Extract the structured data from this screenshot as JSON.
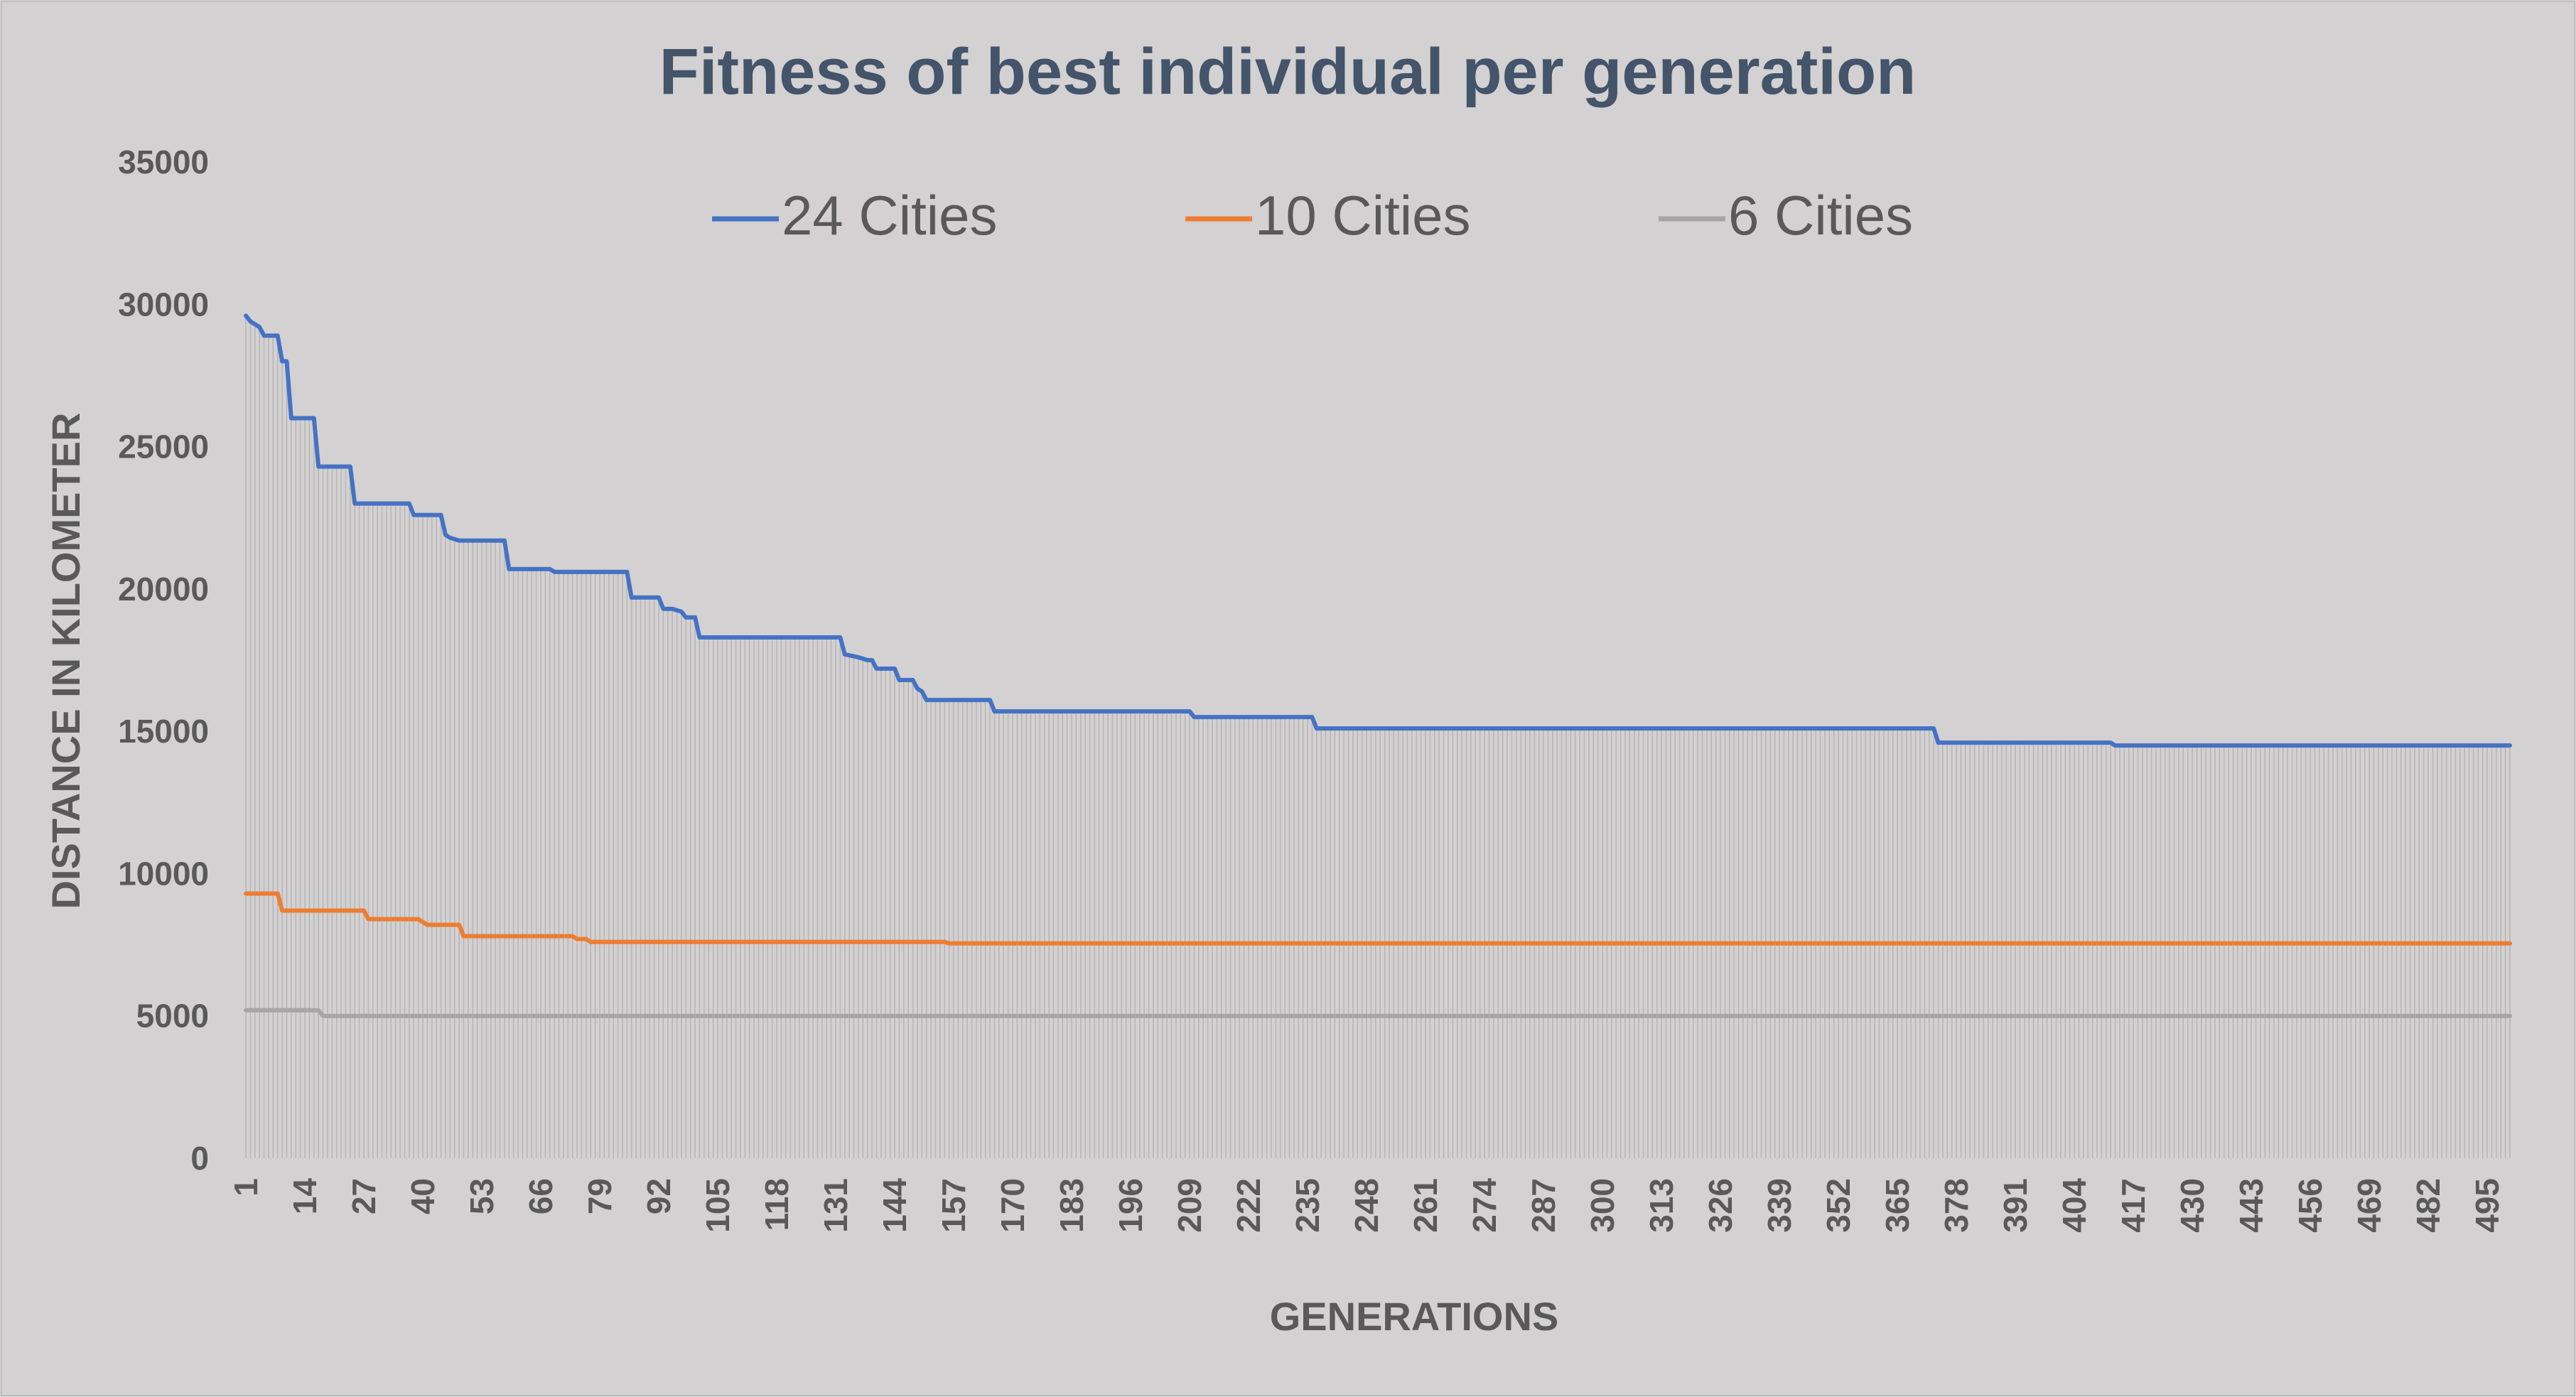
{
  "chart_data": {
    "type": "line",
    "title": "Fitness of best individual per generation",
    "xlabel": "GENERATIONS",
    "ylabel": "DISTANCE IN KILOMETER",
    "ylim": [
      0,
      35000
    ],
    "yticks": [
      0,
      5000,
      10000,
      15000,
      20000,
      25000,
      30000,
      35000
    ],
    "xlim": [
      1,
      500
    ],
    "xtick_labels": [
      "1",
      "14",
      "27",
      "40",
      "53",
      "66",
      "79",
      "92",
      "105",
      "118",
      "131",
      "144",
      "157",
      "170",
      "183",
      "196",
      "209",
      "222",
      "235",
      "248",
      "261",
      "274",
      "287",
      "300",
      "313",
      "326",
      "339",
      "352",
      "365",
      "378",
      "391",
      "404",
      "417",
      "430",
      "443",
      "456",
      "469",
      "482",
      "495"
    ],
    "grid": "vertical hairlines at each generation",
    "legend_position": "top",
    "series": [
      {
        "name": "24 Cities",
        "color": "#4472c4",
        "steps": [
          [
            1,
            29600
          ],
          [
            2,
            29400
          ],
          [
            3,
            29300
          ],
          [
            4,
            29200
          ],
          [
            5,
            28900
          ],
          [
            8,
            28900
          ],
          [
            9,
            28000
          ],
          [
            10,
            28000
          ],
          [
            11,
            26000
          ],
          [
            16,
            26000
          ],
          [
            17,
            24300
          ],
          [
            24,
            24300
          ],
          [
            25,
            23000
          ],
          [
            37,
            23000
          ],
          [
            38,
            22600
          ],
          [
            44,
            22600
          ],
          [
            45,
            21900
          ],
          [
            46,
            21800
          ],
          [
            48,
            21700
          ],
          [
            58,
            21700
          ],
          [
            59,
            20700
          ],
          [
            68,
            20700
          ],
          [
            69,
            20600
          ],
          [
            85,
            20600
          ],
          [
            86,
            19700
          ],
          [
            92,
            19700
          ],
          [
            93,
            19300
          ],
          [
            95,
            19300
          ],
          [
            97,
            19200
          ],
          [
            98,
            19000
          ],
          [
            100,
            19000
          ],
          [
            101,
            18300
          ],
          [
            132,
            18300
          ],
          [
            133,
            17700
          ],
          [
            136,
            17600
          ],
          [
            138,
            17500
          ],
          [
            139,
            17500
          ],
          [
            140,
            17200
          ],
          [
            144,
            17200
          ],
          [
            145,
            16800
          ],
          [
            148,
            16800
          ],
          [
            149,
            16500
          ],
          [
            150,
            16400
          ],
          [
            151,
            16100
          ],
          [
            165,
            16100
          ],
          [
            166,
            15700
          ],
          [
            209,
            15700
          ],
          [
            210,
            15500
          ],
          [
            236,
            15500
          ],
          [
            237,
            15100
          ],
          [
            373,
            15100
          ],
          [
            374,
            14600
          ],
          [
            412,
            14600
          ],
          [
            413,
            14500
          ],
          [
            500,
            14500
          ]
        ]
      },
      {
        "name": "10 Cities",
        "color": "#ed7d31",
        "steps": [
          [
            1,
            9300
          ],
          [
            8,
            9300
          ],
          [
            9,
            8700
          ],
          [
            27,
            8700
          ],
          [
            28,
            8400
          ],
          [
            39,
            8400
          ],
          [
            40,
            8300
          ],
          [
            41,
            8200
          ],
          [
            48,
            8200
          ],
          [
            49,
            7800
          ],
          [
            73,
            7800
          ],
          [
            74,
            7700
          ],
          [
            76,
            7700
          ],
          [
            77,
            7600
          ],
          [
            155,
            7600
          ],
          [
            156,
            7550
          ],
          [
            500,
            7550
          ]
        ]
      },
      {
        "name": "6 Cities",
        "color": "#a5a5a5",
        "steps": [
          [
            1,
            5200
          ],
          [
            17,
            5200
          ],
          [
            18,
            5000
          ],
          [
            500,
            5000
          ]
        ]
      }
    ]
  }
}
